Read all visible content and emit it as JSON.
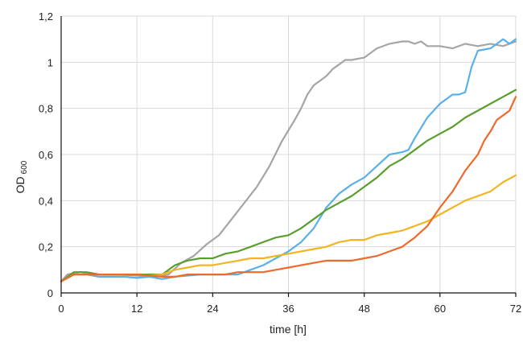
{
  "chart_data": {
    "type": "line",
    "title": "",
    "xlabel": "time [h]",
    "ylabel": "OD",
    "ylabel_subscript": "600",
    "xlim": [
      0,
      72
    ],
    "ylim": [
      0,
      1.2
    ],
    "xticks": [
      0,
      12,
      24,
      36,
      48,
      60,
      72
    ],
    "xtick_labels": [
      "0",
      "12",
      "24",
      "36",
      "48",
      "60",
      "72"
    ],
    "yticks": [
      0,
      0.2,
      0.4,
      0.6,
      0.8,
      1.0,
      1.2
    ],
    "ytick_labels": [
      "0",
      "0,2",
      "0,4",
      "0,6",
      "0,8",
      "1",
      "1,2"
    ],
    "grid": true,
    "legend": "none",
    "series": [
      {
        "color": "#a5a5a5",
        "points": [
          [
            0,
            0.05
          ],
          [
            1,
            0.08
          ],
          [
            3,
            0.09
          ],
          [
            6,
            0.08
          ],
          [
            9,
            0.08
          ],
          [
            12,
            0.075
          ],
          [
            15,
            0.07
          ],
          [
            17,
            0.08
          ],
          [
            19,
            0.13
          ],
          [
            21,
            0.16
          ],
          [
            23,
            0.21
          ],
          [
            25,
            0.25
          ],
          [
            27,
            0.32
          ],
          [
            29,
            0.39
          ],
          [
            31,
            0.46
          ],
          [
            33,
            0.55
          ],
          [
            35,
            0.66
          ],
          [
            37,
            0.75
          ],
          [
            38,
            0.8
          ],
          [
            39,
            0.86
          ],
          [
            40,
            0.9
          ],
          [
            42,
            0.94
          ],
          [
            43,
            0.97
          ],
          [
            44,
            0.99
          ],
          [
            45,
            1.01
          ],
          [
            46,
            1.01
          ],
          [
            48,
            1.02
          ],
          [
            50,
            1.06
          ],
          [
            52,
            1.08
          ],
          [
            54,
            1.09
          ],
          [
            55,
            1.09
          ],
          [
            56,
            1.08
          ],
          [
            57,
            1.09
          ],
          [
            58,
            1.07
          ],
          [
            60,
            1.07
          ],
          [
            62,
            1.06
          ],
          [
            64,
            1.08
          ],
          [
            66,
            1.07
          ],
          [
            68,
            1.08
          ],
          [
            70,
            1.07
          ],
          [
            72,
            1.09
          ]
        ]
      },
      {
        "color": "#5ab0e8",
        "points": [
          [
            0,
            0.05
          ],
          [
            2,
            0.08
          ],
          [
            4,
            0.08
          ],
          [
            6,
            0.07
          ],
          [
            8,
            0.07
          ],
          [
            10,
            0.07
          ],
          [
            12,
            0.065
          ],
          [
            14,
            0.07
          ],
          [
            16,
            0.06
          ],
          [
            18,
            0.07
          ],
          [
            20,
            0.075
          ],
          [
            22,
            0.08
          ],
          [
            24,
            0.08
          ],
          [
            26,
            0.08
          ],
          [
            28,
            0.08
          ],
          [
            30,
            0.1
          ],
          [
            32,
            0.12
          ],
          [
            34,
            0.15
          ],
          [
            36,
            0.18
          ],
          [
            38,
            0.22
          ],
          [
            40,
            0.28
          ],
          [
            42,
            0.37
          ],
          [
            44,
            0.43
          ],
          [
            46,
            0.47
          ],
          [
            48,
            0.5
          ],
          [
            50,
            0.55
          ],
          [
            52,
            0.6
          ],
          [
            54,
            0.61
          ],
          [
            55,
            0.62
          ],
          [
            56,
            0.67
          ],
          [
            58,
            0.76
          ],
          [
            60,
            0.82
          ],
          [
            61,
            0.84
          ],
          [
            62,
            0.86
          ],
          [
            63,
            0.86
          ],
          [
            64,
            0.87
          ],
          [
            65,
            0.98
          ],
          [
            66,
            1.05
          ],
          [
            68,
            1.06
          ],
          [
            69,
            1.08
          ],
          [
            70,
            1.1
          ],
          [
            71,
            1.08
          ],
          [
            72,
            1.1
          ]
        ]
      },
      {
        "color": "#5a9e2e",
        "points": [
          [
            0,
            0.05
          ],
          [
            2,
            0.09
          ],
          [
            4,
            0.09
          ],
          [
            6,
            0.08
          ],
          [
            8,
            0.08
          ],
          [
            10,
            0.08
          ],
          [
            12,
            0.08
          ],
          [
            14,
            0.08
          ],
          [
            16,
            0.08
          ],
          [
            18,
            0.12
          ],
          [
            20,
            0.14
          ],
          [
            22,
            0.15
          ],
          [
            24,
            0.15
          ],
          [
            26,
            0.17
          ],
          [
            28,
            0.18
          ],
          [
            30,
            0.2
          ],
          [
            32,
            0.22
          ],
          [
            34,
            0.24
          ],
          [
            36,
            0.25
          ],
          [
            38,
            0.28
          ],
          [
            40,
            0.32
          ],
          [
            42,
            0.36
          ],
          [
            44,
            0.39
          ],
          [
            46,
            0.42
          ],
          [
            48,
            0.46
          ],
          [
            50,
            0.5
          ],
          [
            52,
            0.55
          ],
          [
            54,
            0.58
          ],
          [
            56,
            0.62
          ],
          [
            58,
            0.66
          ],
          [
            60,
            0.69
          ],
          [
            62,
            0.72
          ],
          [
            64,
            0.76
          ],
          [
            66,
            0.79
          ],
          [
            68,
            0.82
          ],
          [
            70,
            0.85
          ],
          [
            72,
            0.88
          ]
        ]
      },
      {
        "color": "#f2b520",
        "points": [
          [
            0,
            0.05
          ],
          [
            2,
            0.08
          ],
          [
            4,
            0.08
          ],
          [
            6,
            0.08
          ],
          [
            8,
            0.08
          ],
          [
            10,
            0.08
          ],
          [
            12,
            0.08
          ],
          [
            14,
            0.075
          ],
          [
            16,
            0.08
          ],
          [
            18,
            0.1
          ],
          [
            20,
            0.11
          ],
          [
            22,
            0.12
          ],
          [
            24,
            0.12
          ],
          [
            26,
            0.13
          ],
          [
            28,
            0.14
          ],
          [
            30,
            0.15
          ],
          [
            32,
            0.15
          ],
          [
            34,
            0.16
          ],
          [
            36,
            0.17
          ],
          [
            38,
            0.18
          ],
          [
            40,
            0.19
          ],
          [
            42,
            0.2
          ],
          [
            44,
            0.22
          ],
          [
            46,
            0.23
          ],
          [
            48,
            0.23
          ],
          [
            50,
            0.25
          ],
          [
            52,
            0.26
          ],
          [
            54,
            0.27
          ],
          [
            56,
            0.29
          ],
          [
            58,
            0.31
          ],
          [
            60,
            0.34
          ],
          [
            62,
            0.37
          ],
          [
            64,
            0.4
          ],
          [
            66,
            0.42
          ],
          [
            68,
            0.44
          ],
          [
            70,
            0.48
          ],
          [
            72,
            0.51
          ]
        ]
      },
      {
        "color": "#ee6a2c",
        "points": [
          [
            0,
            0.05
          ],
          [
            2,
            0.08
          ],
          [
            4,
            0.08
          ],
          [
            6,
            0.08
          ],
          [
            8,
            0.08
          ],
          [
            10,
            0.08
          ],
          [
            12,
            0.08
          ],
          [
            14,
            0.075
          ],
          [
            16,
            0.07
          ],
          [
            18,
            0.07
          ],
          [
            20,
            0.08
          ],
          [
            22,
            0.08
          ],
          [
            24,
            0.08
          ],
          [
            26,
            0.08
          ],
          [
            28,
            0.09
          ],
          [
            30,
            0.09
          ],
          [
            32,
            0.09
          ],
          [
            34,
            0.1
          ],
          [
            36,
            0.11
          ],
          [
            38,
            0.12
          ],
          [
            40,
            0.13
          ],
          [
            42,
            0.14
          ],
          [
            44,
            0.14
          ],
          [
            46,
            0.14
          ],
          [
            48,
            0.15
          ],
          [
            50,
            0.16
          ],
          [
            52,
            0.18
          ],
          [
            54,
            0.2
          ],
          [
            56,
            0.24
          ],
          [
            58,
            0.29
          ],
          [
            60,
            0.37
          ],
          [
            62,
            0.44
          ],
          [
            64,
            0.53
          ],
          [
            66,
            0.6
          ],
          [
            67,
            0.66
          ],
          [
            68,
            0.7
          ],
          [
            69,
            0.75
          ],
          [
            70,
            0.77
          ],
          [
            71,
            0.79
          ],
          [
            72,
            0.85
          ]
        ]
      }
    ]
  }
}
